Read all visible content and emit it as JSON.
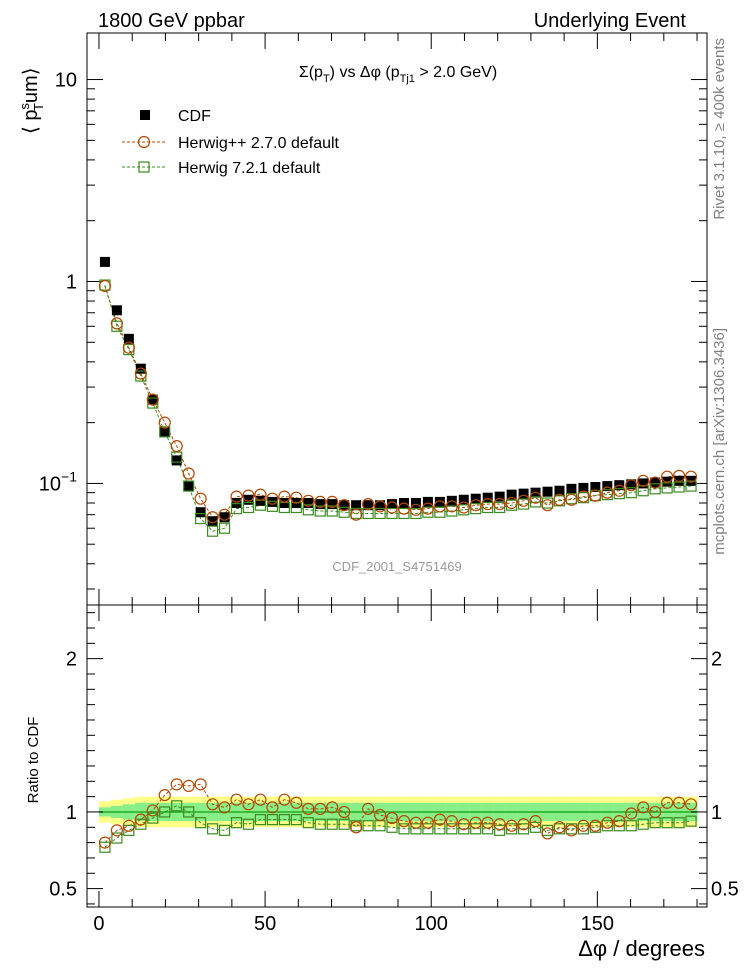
{
  "header": {
    "left": "1800 GeV ppbar",
    "right": "Underlying Event"
  },
  "side_labels": {
    "rivet": "Rivet 3.1.10, ≥ 400k events",
    "mcplots": "mcplots.cern.ch [arXiv:1306.3436]"
  },
  "colors": {
    "cdf": "#000000",
    "herwigpp": "#b34700",
    "herwig7": "#3a8a1f",
    "band_outer": "#ffff88",
    "band_inner": "#88ee88",
    "ref_line": "#22aa22"
  },
  "chart_data": [
    {
      "type": "scatter",
      "name": "main",
      "title": "Σ(p_T) vs Δφ (p_Tj1 > 2.0 GeV)",
      "title_parts": {
        "a": "Σ(p",
        "b": "T",
        "c": ") vs Δφ (p",
        "d": "Tj1",
        "e": " > 2.0 GeV)"
      },
      "ylabel_parts": {
        "a": "⟨ p",
        "sup": "s",
        "sub": "T",
        "b": "um⟩"
      },
      "yscale": "log",
      "ylim": [
        0.025,
        17
      ],
      "xlim": [
        -3.6,
        183
      ],
      "watermark": "CDF_2001_S4751469",
      "yticks": [
        {
          "value": 0.1,
          "base": "10",
          "exp": "−1"
        },
        {
          "value": 1,
          "base": "1",
          "exp": ""
        },
        {
          "value": 10,
          "base": "10",
          "exp": ""
        }
      ],
      "x": [
        1.8,
        5.4,
        9.0,
        12.6,
        16.2,
        19.8,
        23.4,
        27.0,
        30.6,
        34.2,
        37.8,
        41.4,
        45.0,
        48.6,
        52.2,
        55.8,
        59.4,
        63.0,
        66.6,
        70.2,
        73.8,
        77.4,
        81.0,
        84.6,
        88.2,
        91.8,
        95.4,
        99.0,
        102.6,
        106.2,
        109.8,
        113.4,
        117.0,
        120.6,
        124.2,
        127.8,
        131.4,
        135.0,
        138.6,
        142.2,
        145.8,
        149.4,
        153.0,
        156.6,
        160.2,
        163.8,
        167.4,
        171.0,
        174.6,
        178.2
      ],
      "series": [
        {
          "name": "CDF",
          "marker": "square-filled",
          "values": [
            1.25,
            0.72,
            0.52,
            0.37,
            0.26,
            0.18,
            0.13,
            0.097,
            0.072,
            0.065,
            0.068,
            0.08,
            0.083,
            0.082,
            0.081,
            0.08,
            0.08,
            0.08,
            0.079,
            0.079,
            0.078,
            0.078,
            0.078,
            0.078,
            0.079,
            0.08,
            0.08,
            0.081,
            0.081,
            0.082,
            0.083,
            0.084,
            0.085,
            0.086,
            0.088,
            0.089,
            0.09,
            0.091,
            0.092,
            0.094,
            0.095,
            0.096,
            0.097,
            0.098,
            0.099,
            0.1,
            0.101,
            0.102,
            0.103,
            0.103
          ]
        },
        {
          "name": "Herwig++ 2.7.0 default",
          "marker": "circle-open",
          "values": [
            0.95,
            0.62,
            0.47,
            0.35,
            0.26,
            0.2,
            0.153,
            0.112,
            0.084,
            0.068,
            0.07,
            0.086,
            0.087,
            0.088,
            0.084,
            0.086,
            0.085,
            0.082,
            0.081,
            0.081,
            0.078,
            0.07,
            0.079,
            0.077,
            0.076,
            0.075,
            0.074,
            0.075,
            0.077,
            0.077,
            0.076,
            0.078,
            0.079,
            0.079,
            0.08,
            0.082,
            0.085,
            0.078,
            0.083,
            0.083,
            0.086,
            0.087,
            0.09,
            0.092,
            0.098,
            0.103,
            0.101,
            0.108,
            0.109,
            0.108
          ]
        },
        {
          "name": "Herwig 7.2.1 default",
          "marker": "square-open",
          "values": [
            0.96,
            0.6,
            0.46,
            0.34,
            0.25,
            0.18,
            0.135,
            0.097,
            0.067,
            0.058,
            0.06,
            0.075,
            0.076,
            0.078,
            0.077,
            0.076,
            0.076,
            0.074,
            0.073,
            0.073,
            0.072,
            0.071,
            0.071,
            0.071,
            0.071,
            0.071,
            0.071,
            0.072,
            0.072,
            0.073,
            0.074,
            0.075,
            0.076,
            0.076,
            0.078,
            0.079,
            0.081,
            0.08,
            0.082,
            0.084,
            0.085,
            0.087,
            0.088,
            0.089,
            0.09,
            0.092,
            0.094,
            0.095,
            0.096,
            0.097
          ]
        }
      ]
    },
    {
      "type": "scatter",
      "name": "ratio",
      "ylabel": "Ratio to CDF",
      "xlabel": "Δφ / degrees",
      "ylim": [
        0.38,
        2.35
      ],
      "xlim": [
        -3.6,
        183
      ],
      "yticks": [
        0.5,
        1,
        2
      ],
      "ytick_labels": [
        "0.5",
        "1",
        "2"
      ],
      "xticks": [
        0,
        50,
        100,
        150
      ],
      "xtick_labels": [
        "0",
        "50",
        "100",
        "150"
      ],
      "band_inner_halfwidth": [
        0.03,
        0.04,
        0.05,
        0.06,
        0.06,
        0.06,
        0.06,
        0.06,
        0.06,
        0.06,
        0.06,
        0.06,
        0.06,
        0.06,
        0.06,
        0.06,
        0.06,
        0.06,
        0.06,
        0.06,
        0.06,
        0.06,
        0.06,
        0.06,
        0.06,
        0.06,
        0.06,
        0.06,
        0.06,
        0.06,
        0.06,
        0.06,
        0.06,
        0.06,
        0.06,
        0.06,
        0.06,
        0.06,
        0.06,
        0.06,
        0.06,
        0.06,
        0.06,
        0.06,
        0.06,
        0.06,
        0.06,
        0.06,
        0.06,
        0.06
      ],
      "band_outer_halfwidth": [
        0.07,
        0.08,
        0.09,
        0.1,
        0.1,
        0.1,
        0.1,
        0.1,
        0.1,
        0.1,
        0.1,
        0.1,
        0.1,
        0.1,
        0.1,
        0.1,
        0.1,
        0.1,
        0.1,
        0.1,
        0.1,
        0.1,
        0.1,
        0.1,
        0.1,
        0.1,
        0.1,
        0.1,
        0.1,
        0.1,
        0.1,
        0.1,
        0.1,
        0.1,
        0.1,
        0.1,
        0.1,
        0.1,
        0.1,
        0.1,
        0.1,
        0.1,
        0.1,
        0.1,
        0.1,
        0.1,
        0.1,
        0.1,
        0.1,
        0.1
      ],
      "series": [
        {
          "name": "Herwig++ 2.7.0 default",
          "marker": "circle-open",
          "values": [
            0.8,
            0.88,
            0.91,
            0.95,
            1.01,
            1.11,
            1.18,
            1.17,
            1.18,
            1.05,
            1.03,
            1.08,
            1.05,
            1.08,
            1.03,
            1.08,
            1.06,
            1.02,
            1.02,
            1.03,
            1.0,
            0.9,
            1.02,
            0.98,
            0.96,
            0.94,
            0.93,
            0.93,
            0.95,
            0.94,
            0.92,
            0.93,
            0.93,
            0.92,
            0.91,
            0.92,
            0.94,
            0.86,
            0.9,
            0.88,
            0.91,
            0.91,
            0.93,
            0.94,
            0.99,
            1.03,
            1.0,
            1.06,
            1.06,
            1.05
          ]
        },
        {
          "name": "Herwig 7.2.1 default",
          "marker": "square-open",
          "values": [
            0.77,
            0.83,
            0.88,
            0.92,
            0.96,
            1.0,
            1.04,
            1.0,
            0.93,
            0.89,
            0.88,
            0.93,
            0.92,
            0.95,
            0.95,
            0.95,
            0.95,
            0.93,
            0.92,
            0.92,
            0.92,
            0.91,
            0.91,
            0.91,
            0.9,
            0.89,
            0.89,
            0.89,
            0.89,
            0.89,
            0.89,
            0.89,
            0.89,
            0.88,
            0.89,
            0.89,
            0.9,
            0.88,
            0.89,
            0.89,
            0.89,
            0.9,
            0.91,
            0.91,
            0.91,
            0.92,
            0.93,
            0.93,
            0.93,
            0.94
          ]
        }
      ]
    }
  ]
}
